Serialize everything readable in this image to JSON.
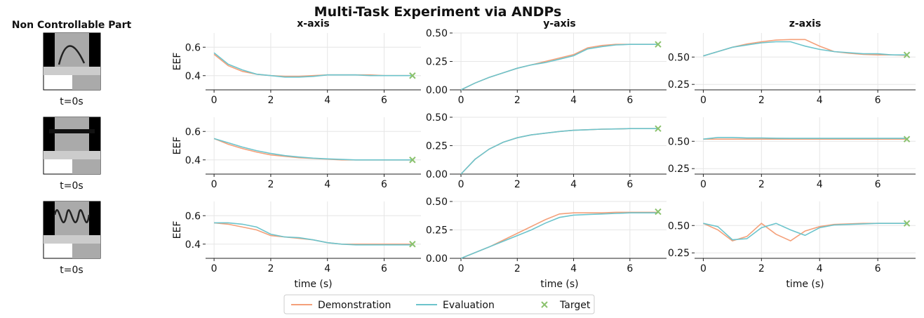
{
  "title": "Multi-Task Experiment via ANDPs",
  "left_header": "Non Controllable Part",
  "thumbnails": [
    {
      "label": "t=0s"
    },
    {
      "label": "t=0s"
    },
    {
      "label": "t=0s"
    }
  ],
  "chart_data": [
    {
      "type": "line",
      "title": "x-axis",
      "ylabel": "EEF",
      "xlim": [
        -0.3,
        7.3
      ],
      "xticks": [
        0,
        2,
        4,
        6
      ],
      "ylim": [
        0.3,
        0.7
      ],
      "yticks": [
        0.4,
        0.6
      ],
      "grid": true,
      "x": [
        0,
        0.5,
        1,
        1.5,
        2,
        2.5,
        3,
        3.5,
        4,
        4.5,
        5,
        5.5,
        6,
        6.5,
        7
      ],
      "series": [
        {
          "name": "Demonstration",
          "color": "#f4a07a",
          "values": [
            0.55,
            0.47,
            0.43,
            0.41,
            0.4,
            0.395,
            0.395,
            0.4,
            0.405,
            0.405,
            0.405,
            0.405,
            0.4,
            0.4,
            0.4
          ]
        },
        {
          "name": "Evaluation",
          "color": "#6cc4cc",
          "values": [
            0.56,
            0.48,
            0.44,
            0.41,
            0.4,
            0.39,
            0.39,
            0.395,
            0.405,
            0.405,
            0.405,
            0.4,
            0.4,
            0.4,
            0.4
          ]
        },
        {
          "name": "Target",
          "color": "#8bc26e",
          "marker": "x",
          "x": [
            7
          ],
          "values": [
            0.4
          ]
        }
      ]
    },
    {
      "type": "line",
      "title": "y-axis",
      "xlim": [
        -0.3,
        7.3
      ],
      "xticks": [
        0,
        2,
        4,
        6
      ],
      "ylim": [
        0,
        0.5
      ],
      "yticks": [
        {
          "value": 0,
          "label": "0.00"
        },
        0.25,
        {
          "value": 0.5,
          "label": "0.50"
        }
      ],
      "grid": true,
      "x": [
        0,
        0.5,
        1,
        1.5,
        2,
        2.5,
        3,
        3.5,
        4,
        4.5,
        5,
        5.5,
        6,
        6.5,
        7
      ],
      "series": [
        {
          "name": "Demonstration",
          "color": "#f4a07a",
          "values": [
            0,
            0.06,
            0.11,
            0.15,
            0.19,
            0.22,
            0.25,
            0.28,
            0.31,
            0.37,
            0.39,
            0.4,
            0.4,
            0.4,
            0.4
          ]
        },
        {
          "name": "Evaluation",
          "color": "#6cc4cc",
          "values": [
            0,
            0.06,
            0.11,
            0.15,
            0.19,
            0.22,
            0.24,
            0.27,
            0.3,
            0.36,
            0.38,
            0.395,
            0.4,
            0.4,
            0.4
          ]
        },
        {
          "name": "Target",
          "color": "#8bc26e",
          "marker": "x",
          "x": [
            7
          ],
          "values": [
            0.4
          ]
        }
      ]
    },
    {
      "type": "line",
      "title": "z-axis",
      "xlim": [
        -0.3,
        7.3
      ],
      "xticks": [
        0,
        2,
        4,
        6
      ],
      "ylim": [
        0.2,
        0.72
      ],
      "yticks": [
        0.25,
        {
          "value": 0.5,
          "label": "0.50"
        }
      ],
      "grid": true,
      "x": [
        0,
        0.5,
        1,
        1.5,
        2,
        2.5,
        3,
        3.5,
        4,
        4.5,
        5,
        5.5,
        6,
        6.5,
        7
      ],
      "series": [
        {
          "name": "Demonstration",
          "color": "#f4a07a",
          "values": [
            0.51,
            0.55,
            0.59,
            0.62,
            0.64,
            0.655,
            0.66,
            0.66,
            0.6,
            0.55,
            0.535,
            0.525,
            0.52,
            0.52,
            0.515
          ]
        },
        {
          "name": "Evaluation",
          "color": "#6cc4cc",
          "values": [
            0.51,
            0.55,
            0.59,
            0.61,
            0.63,
            0.64,
            0.64,
            0.6,
            0.57,
            0.55,
            0.54,
            0.53,
            0.53,
            0.52,
            0.52
          ]
        },
        {
          "name": "Target",
          "color": "#8bc26e",
          "marker": "x",
          "x": [
            7
          ],
          "values": [
            0.52
          ]
        }
      ]
    },
    {
      "type": "line",
      "ylabel": "EEF",
      "xlim": [
        -0.3,
        7.3
      ],
      "xticks": [
        0,
        2,
        4,
        6
      ],
      "ylim": [
        0.3,
        0.7
      ],
      "yticks": [
        0.4,
        0.6
      ],
      "grid": true,
      "x": [
        0,
        0.5,
        1,
        1.5,
        2,
        2.5,
        3,
        3.5,
        4,
        4.5,
        5,
        5.5,
        6,
        6.5,
        7
      ],
      "series": [
        {
          "name": "Demonstration",
          "color": "#f4a07a",
          "values": [
            0.55,
            0.51,
            0.48,
            0.455,
            0.435,
            0.425,
            0.415,
            0.41,
            0.405,
            0.4,
            0.4,
            0.4,
            0.4,
            0.4,
            0.4
          ]
        },
        {
          "name": "Evaluation",
          "color": "#6cc4cc",
          "values": [
            0.55,
            0.52,
            0.49,
            0.465,
            0.445,
            0.43,
            0.42,
            0.412,
            0.407,
            0.403,
            0.4,
            0.4,
            0.4,
            0.4,
            0.4
          ]
        },
        {
          "name": "Target",
          "color": "#8bc26e",
          "marker": "x",
          "x": [
            7
          ],
          "values": [
            0.4
          ]
        }
      ]
    },
    {
      "type": "line",
      "xlim": [
        -0.3,
        7.3
      ],
      "xticks": [
        0,
        2,
        4,
        6
      ],
      "ylim": [
        0,
        0.5
      ],
      "yticks": [
        {
          "value": 0,
          "label": "0.00"
        },
        0.25,
        {
          "value": 0.5,
          "label": "0.50"
        }
      ],
      "grid": true,
      "x": [
        0,
        0.5,
        1,
        1.5,
        2,
        2.5,
        3,
        3.5,
        4,
        4.5,
        5,
        5.5,
        6,
        6.5,
        7
      ],
      "series": [
        {
          "name": "Demonstration",
          "color": "#f4a07a",
          "values": [
            0,
            0.13,
            0.22,
            0.28,
            0.32,
            0.345,
            0.36,
            0.375,
            0.385,
            0.39,
            0.395,
            0.397,
            0.4,
            0.4,
            0.4
          ]
        },
        {
          "name": "Evaluation",
          "color": "#6cc4cc",
          "values": [
            0,
            0.13,
            0.22,
            0.28,
            0.32,
            0.345,
            0.36,
            0.375,
            0.385,
            0.39,
            0.395,
            0.397,
            0.4,
            0.4,
            0.4
          ]
        },
        {
          "name": "Target",
          "color": "#8bc26e",
          "marker": "x",
          "x": [
            7
          ],
          "values": [
            0.4
          ]
        }
      ]
    },
    {
      "type": "line",
      "xlim": [
        -0.3,
        7.3
      ],
      "xticks": [
        0,
        2,
        4,
        6
      ],
      "ylim": [
        0.2,
        0.72
      ],
      "yticks": [
        0.25,
        {
          "value": 0.5,
          "label": "0.50"
        }
      ],
      "grid": true,
      "x": [
        0,
        0.5,
        1,
        1.5,
        2,
        2.5,
        3,
        3.5,
        4,
        4.5,
        5,
        5.5,
        6,
        6.5,
        7
      ],
      "series": [
        {
          "name": "Demonstration",
          "color": "#f4a07a",
          "values": [
            0.52,
            0.52,
            0.52,
            0.52,
            0.52,
            0.52,
            0.52,
            0.52,
            0.52,
            0.52,
            0.52,
            0.52,
            0.52,
            0.52,
            0.52
          ]
        },
        {
          "name": "Evaluation",
          "color": "#6cc4cc",
          "values": [
            0.52,
            0.535,
            0.535,
            0.53,
            0.53,
            0.528,
            0.527,
            0.527,
            0.527,
            0.527,
            0.527,
            0.527,
            0.527,
            0.527,
            0.527
          ]
        },
        {
          "name": "Target",
          "color": "#8bc26e",
          "marker": "x",
          "x": [
            7
          ],
          "values": [
            0.52
          ]
        }
      ]
    },
    {
      "type": "line",
      "ylabel": "EEF",
      "xlabel": "time (s)",
      "xlim": [
        -0.3,
        7.3
      ],
      "xticks": [
        0,
        2,
        4,
        6
      ],
      "ylim": [
        0.3,
        0.7
      ],
      "yticks": [
        0.4,
        0.6
      ],
      "grid": true,
      "x": [
        0,
        0.5,
        1,
        1.5,
        2,
        2.5,
        3,
        3.5,
        4,
        4.5,
        5,
        5.5,
        6,
        6.5,
        7
      ],
      "series": [
        {
          "name": "Demonstration",
          "color": "#f4a07a",
          "values": [
            0.55,
            0.54,
            0.52,
            0.5,
            0.46,
            0.45,
            0.44,
            0.43,
            0.41,
            0.4,
            0.4,
            0.4,
            0.4,
            0.4,
            0.4
          ]
        },
        {
          "name": "Evaluation",
          "color": "#6cc4cc",
          "values": [
            0.55,
            0.55,
            0.54,
            0.52,
            0.47,
            0.45,
            0.445,
            0.43,
            0.41,
            0.4,
            0.395,
            0.395,
            0.395,
            0.395,
            0.395
          ]
        },
        {
          "name": "Target",
          "color": "#8bc26e",
          "marker": "x",
          "x": [
            7
          ],
          "values": [
            0.4
          ]
        }
      ]
    },
    {
      "type": "line",
      "xlabel": "time (s)",
      "xlim": [
        -0.3,
        7.3
      ],
      "xticks": [
        0,
        2,
        4,
        6
      ],
      "ylim": [
        0,
        0.5
      ],
      "yticks": [
        {
          "value": 0,
          "label": "0.00"
        },
        0.25,
        {
          "value": 0.5,
          "label": "0.50"
        }
      ],
      "grid": true,
      "x": [
        0,
        0.5,
        1,
        1.5,
        2,
        2.5,
        3,
        3.5,
        4,
        4.5,
        5,
        5.5,
        6,
        6.5,
        7
      ],
      "series": [
        {
          "name": "Demonstration",
          "color": "#f4a07a",
          "values": [
            0,
            0.05,
            0.1,
            0.16,
            0.22,
            0.28,
            0.34,
            0.39,
            0.4,
            0.4,
            0.4,
            0.405,
            0.405,
            0.405,
            0.405
          ]
        },
        {
          "name": "Evaluation",
          "color": "#6cc4cc",
          "values": [
            0,
            0.05,
            0.1,
            0.15,
            0.2,
            0.25,
            0.31,
            0.36,
            0.38,
            0.385,
            0.39,
            0.395,
            0.4,
            0.4,
            0.4
          ]
        },
        {
          "name": "Target",
          "color": "#8bc26e",
          "marker": "x",
          "x": [
            7
          ],
          "values": [
            0.41
          ]
        }
      ]
    },
    {
      "type": "line",
      "xlabel": "time (s)",
      "xlim": [
        -0.3,
        7.3
      ],
      "xticks": [
        0,
        2,
        4,
        6
      ],
      "ylim": [
        0.2,
        0.72
      ],
      "yticks": [
        0.25,
        {
          "value": 0.5,
          "label": "0.50"
        }
      ],
      "grid": true,
      "x": [
        0,
        0.5,
        1,
        1.5,
        2,
        2.5,
        3,
        3.5,
        4,
        4.5,
        5,
        5.5,
        6,
        6.5,
        7
      ],
      "series": [
        {
          "name": "Demonstration",
          "color": "#f4a07a",
          "values": [
            0.52,
            0.46,
            0.36,
            0.4,
            0.52,
            0.42,
            0.36,
            0.45,
            0.49,
            0.51,
            0.515,
            0.52,
            0.52,
            0.52,
            0.52
          ]
        },
        {
          "name": "Evaluation",
          "color": "#6cc4cc",
          "values": [
            0.52,
            0.49,
            0.37,
            0.38,
            0.48,
            0.52,
            0.46,
            0.41,
            0.48,
            0.505,
            0.51,
            0.515,
            0.52,
            0.52,
            0.52
          ]
        },
        {
          "name": "Target",
          "color": "#8bc26e",
          "marker": "x",
          "x": [
            7
          ],
          "values": [
            0.52
          ]
        }
      ]
    }
  ]
}
